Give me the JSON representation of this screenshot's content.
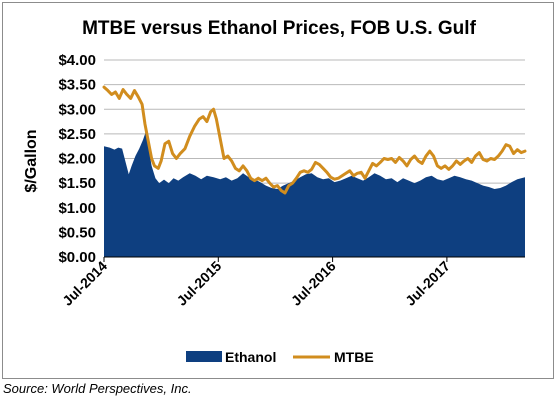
{
  "chart_data": {
    "type": "area",
    "title": "MTBE versus Ethanol Prices, FOB U.S. Gulf",
    "ylabel": "$/Gallon",
    "xlabel": "",
    "ylim": [
      0,
      4
    ],
    "yticks": [
      "$0.00",
      "$0.50",
      "$1.00",
      "$1.50",
      "$2.00",
      "$2.50",
      "$3.00",
      "$3.50",
      "$4.00"
    ],
    "ytick_values": [
      0,
      0.5,
      1,
      1.5,
      2,
      2.5,
      3,
      3.5,
      4
    ],
    "xticks": [
      {
        "label": "Jul-2014",
        "t": 0
      },
      {
        "label": "Jul-2015",
        "t": 12
      },
      {
        "label": "Jul-2016",
        "t": 24
      },
      {
        "label": "Jul-2017",
        "t": 36
      }
    ],
    "xlim": [
      0,
      44.2
    ],
    "grid": "horizontal",
    "legend_position": "bottom",
    "series": [
      {
        "name": "Ethanol",
        "style": "area",
        "color": "#0e3f80",
        "points": [
          [
            0,
            2.25
          ],
          [
            0.6,
            2.22
          ],
          [
            1.1,
            2.18
          ],
          [
            1.5,
            2.22
          ],
          [
            1.9,
            2.2
          ],
          [
            2.3,
            1.9
          ],
          [
            2.6,
            1.68
          ],
          [
            2.9,
            1.85
          ],
          [
            3.3,
            2.05
          ],
          [
            3.7,
            2.2
          ],
          [
            4.1,
            2.38
          ],
          [
            4.4,
            2.55
          ],
          [
            4.7,
            2.2
          ],
          [
            5.0,
            1.85
          ],
          [
            5.4,
            1.6
          ],
          [
            5.8,
            1.5
          ],
          [
            6.3,
            1.57
          ],
          [
            6.8,
            1.5
          ],
          [
            7.3,
            1.6
          ],
          [
            7.8,
            1.55
          ],
          [
            8.3,
            1.62
          ],
          [
            9.0,
            1.7
          ],
          [
            9.6,
            1.65
          ],
          [
            10.2,
            1.58
          ],
          [
            10.8,
            1.65
          ],
          [
            11.5,
            1.62
          ],
          [
            12.2,
            1.58
          ],
          [
            12.8,
            1.62
          ],
          [
            13.4,
            1.55
          ],
          [
            14.0,
            1.6
          ],
          [
            14.6,
            1.7
          ],
          [
            15.2,
            1.62
          ],
          [
            15.8,
            1.58
          ],
          [
            16.4,
            1.52
          ],
          [
            17.0,
            1.45
          ],
          [
            17.6,
            1.4
          ],
          [
            18.2,
            1.38
          ],
          [
            18.8,
            1.45
          ],
          [
            19.4,
            1.5
          ],
          [
            20.0,
            1.55
          ],
          [
            20.6,
            1.62
          ],
          [
            21.2,
            1.68
          ],
          [
            21.8,
            1.7
          ],
          [
            22.4,
            1.62
          ],
          [
            23.0,
            1.58
          ],
          [
            23.6,
            1.6
          ],
          [
            24.2,
            1.52
          ],
          [
            24.8,
            1.55
          ],
          [
            25.4,
            1.6
          ],
          [
            26.0,
            1.65
          ],
          [
            26.6,
            1.6
          ],
          [
            27.2,
            1.55
          ],
          [
            27.8,
            1.62
          ],
          [
            28.4,
            1.7
          ],
          [
            29.0,
            1.65
          ],
          [
            29.6,
            1.58
          ],
          [
            30.2,
            1.6
          ],
          [
            30.8,
            1.52
          ],
          [
            31.4,
            1.6
          ],
          [
            32.0,
            1.55
          ],
          [
            32.6,
            1.5
          ],
          [
            33.2,
            1.55
          ],
          [
            33.8,
            1.62
          ],
          [
            34.4,
            1.65
          ],
          [
            35.0,
            1.58
          ],
          [
            35.6,
            1.55
          ],
          [
            36.2,
            1.6
          ],
          [
            36.8,
            1.65
          ],
          [
            37.4,
            1.62
          ],
          [
            38.0,
            1.58
          ],
          [
            38.6,
            1.55
          ],
          [
            39.2,
            1.5
          ],
          [
            39.8,
            1.45
          ],
          [
            40.4,
            1.42
          ],
          [
            41.0,
            1.38
          ],
          [
            41.6,
            1.4
          ],
          [
            42.2,
            1.45
          ],
          [
            42.8,
            1.52
          ],
          [
            43.4,
            1.58
          ],
          [
            44.2,
            1.62
          ]
        ]
      },
      {
        "name": "MTBE",
        "style": "line",
        "color": "#d18d1e",
        "points": [
          [
            0,
            3.45
          ],
          [
            0.4,
            3.38
          ],
          [
            0.8,
            3.3
          ],
          [
            1.2,
            3.35
          ],
          [
            1.6,
            3.22
          ],
          [
            2.0,
            3.4
          ],
          [
            2.4,
            3.3
          ],
          [
            2.8,
            3.22
          ],
          [
            3.2,
            3.38
          ],
          [
            3.6,
            3.25
          ],
          [
            4.0,
            3.1
          ],
          [
            4.3,
            2.7
          ],
          [
            4.6,
            2.4
          ],
          [
            5.0,
            2.0
          ],
          [
            5.3,
            1.85
          ],
          [
            5.7,
            1.8
          ],
          [
            6.0,
            1.95
          ],
          [
            6.4,
            2.3
          ],
          [
            6.8,
            2.35
          ],
          [
            7.2,
            2.1
          ],
          [
            7.6,
            2.0
          ],
          [
            8.0,
            2.1
          ],
          [
            8.5,
            2.2
          ],
          [
            9.0,
            2.45
          ],
          [
            9.5,
            2.65
          ],
          [
            10.0,
            2.8
          ],
          [
            10.4,
            2.85
          ],
          [
            10.8,
            2.75
          ],
          [
            11.2,
            2.95
          ],
          [
            11.5,
            3.0
          ],
          [
            11.8,
            2.8
          ],
          [
            12.2,
            2.4
          ],
          [
            12.6,
            2.0
          ],
          [
            13.0,
            2.05
          ],
          [
            13.4,
            1.95
          ],
          [
            13.8,
            1.8
          ],
          [
            14.2,
            1.75
          ],
          [
            14.6,
            1.85
          ],
          [
            15.0,
            1.75
          ],
          [
            15.4,
            1.6
          ],
          [
            15.8,
            1.55
          ],
          [
            16.2,
            1.6
          ],
          [
            16.6,
            1.55
          ],
          [
            17.0,
            1.6
          ],
          [
            17.4,
            1.5
          ],
          [
            17.8,
            1.42
          ],
          [
            18.2,
            1.45
          ],
          [
            18.6,
            1.35
          ],
          [
            19.0,
            1.3
          ],
          [
            19.4,
            1.45
          ],
          [
            19.8,
            1.5
          ],
          [
            20.2,
            1.6
          ],
          [
            20.6,
            1.72
          ],
          [
            21.0,
            1.75
          ],
          [
            21.4,
            1.72
          ],
          [
            21.8,
            1.78
          ],
          [
            22.2,
            1.92
          ],
          [
            22.6,
            1.88
          ],
          [
            23.0,
            1.8
          ],
          [
            23.4,
            1.72
          ],
          [
            23.8,
            1.62
          ],
          [
            24.2,
            1.58
          ],
          [
            24.6,
            1.6
          ],
          [
            25.0,
            1.65
          ],
          [
            25.4,
            1.7
          ],
          [
            25.8,
            1.75
          ],
          [
            26.2,
            1.65
          ],
          [
            26.6,
            1.7
          ],
          [
            27.0,
            1.72
          ],
          [
            27.4,
            1.6
          ],
          [
            27.8,
            1.75
          ],
          [
            28.2,
            1.9
          ],
          [
            28.6,
            1.85
          ],
          [
            29.0,
            1.92
          ],
          [
            29.4,
            2.0
          ],
          [
            29.8,
            1.98
          ],
          [
            30.2,
            2.0
          ],
          [
            30.6,
            1.92
          ],
          [
            31.0,
            2.02
          ],
          [
            31.4,
            1.95
          ],
          [
            31.8,
            1.85
          ],
          [
            32.2,
            1.98
          ],
          [
            32.6,
            2.05
          ],
          [
            33.0,
            1.95
          ],
          [
            33.4,
            1.9
          ],
          [
            33.8,
            2.05
          ],
          [
            34.2,
            2.15
          ],
          [
            34.6,
            2.05
          ],
          [
            35.0,
            1.85
          ],
          [
            35.4,
            1.8
          ],
          [
            35.8,
            1.85
          ],
          [
            36.2,
            1.78
          ],
          [
            36.6,
            1.85
          ],
          [
            37.0,
            1.95
          ],
          [
            37.4,
            1.88
          ],
          [
            37.8,
            1.95
          ],
          [
            38.2,
            2.0
          ],
          [
            38.6,
            1.92
          ],
          [
            39.0,
            2.05
          ],
          [
            39.4,
            2.12
          ],
          [
            39.8,
            1.98
          ],
          [
            40.2,
            1.95
          ],
          [
            40.6,
            2.0
          ],
          [
            41.0,
            1.98
          ],
          [
            41.4,
            2.05
          ],
          [
            41.8,
            2.15
          ],
          [
            42.2,
            2.28
          ],
          [
            42.6,
            2.25
          ],
          [
            43.0,
            2.1
          ],
          [
            43.4,
            2.18
          ],
          [
            43.8,
            2.12
          ],
          [
            44.2,
            2.15
          ]
        ]
      }
    ]
  },
  "source_note": "Source: World Perspectives, Inc.",
  "colors": {
    "ethanol": "#0e3f80",
    "mtbe": "#d18d1e",
    "grid": "#b9b9b9",
    "plot_background": "#ffffff"
  }
}
